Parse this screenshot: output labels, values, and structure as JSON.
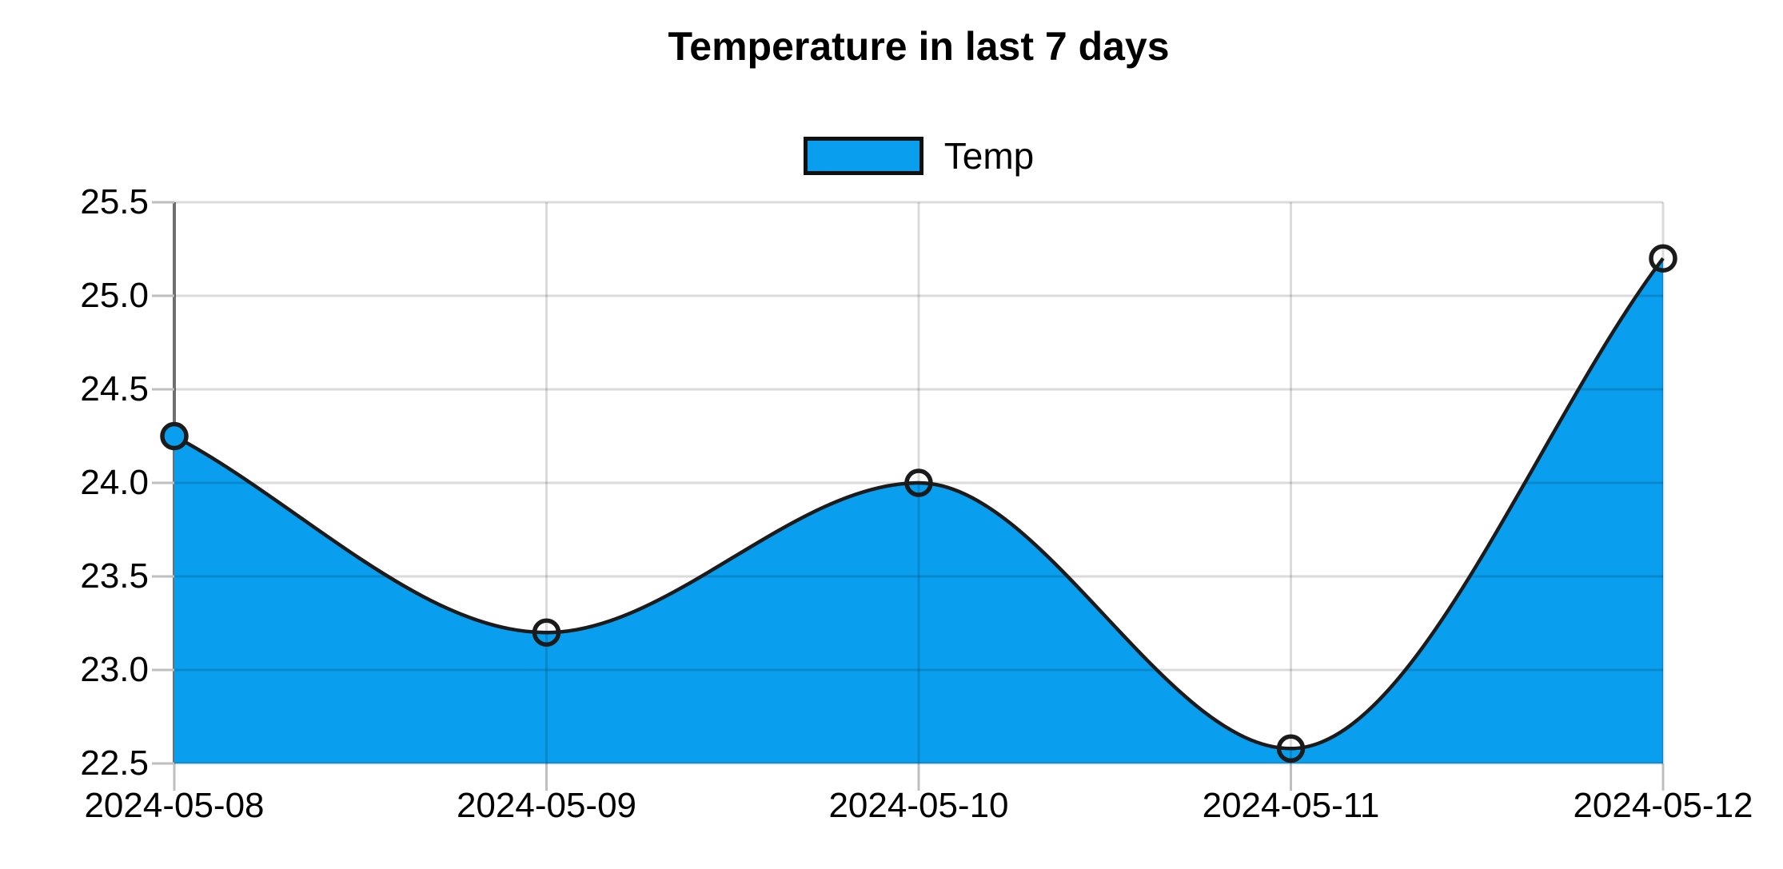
{
  "title": "Temperature in last 7 days",
  "legend": {
    "label": "Temp"
  },
  "chart_data": {
    "type": "area",
    "title": "Temperature in last 7 days",
    "categories": [
      "2024-05-08",
      "2024-05-09",
      "2024-05-10",
      "2024-05-11",
      "2024-05-12"
    ],
    "series": [
      {
        "name": "Temp",
        "values": [
          24.25,
          23.2,
          24.0,
          22.58,
          25.2
        ]
      }
    ],
    "xlabel": "",
    "ylabel": "",
    "ylim": [
      22.5,
      25.5
    ],
    "ytick_labels": [
      "22.5",
      "23.0",
      "23.5",
      "24.0",
      "24.5",
      "25.0",
      "25.5"
    ],
    "grid": true,
    "legend_position": "top-center",
    "curve": "monotone",
    "markers": "circle-hollow",
    "first_marker_filled": true,
    "colors": {
      "fill": "#0a9fee",
      "line": "#1b1b1b",
      "grid": "rgba(0,0,0,0.14)",
      "axis": "#6f6f6f",
      "tick": "#bfbfbf",
      "text": "#000000",
      "legend_border": "#101010"
    }
  }
}
